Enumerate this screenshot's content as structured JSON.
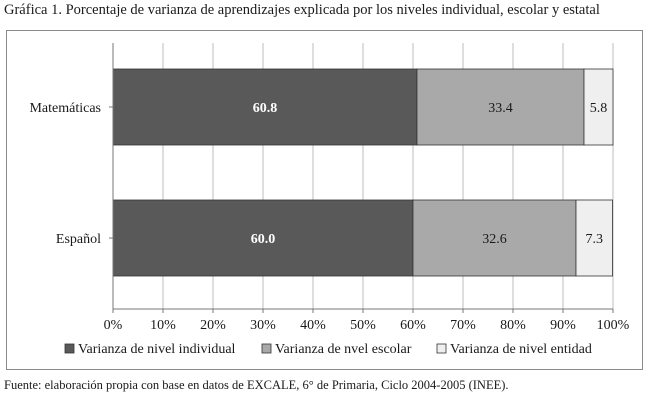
{
  "title": "Gráfica 1. Porcentaje de varianza de aprendizajes explicada por los niveles individual, escolar y estatal",
  "source": "Fuente: elaboración propia con base en datos de EXCALE, 6° de Primaria, Ciclo 2004-2005 (INEE).",
  "chart_data": {
    "type": "bar",
    "orientation": "horizontal",
    "stacked": true,
    "categories": [
      "Matemáticas",
      "Español"
    ],
    "series": [
      {
        "name": "Varianza de nivel individual",
        "values": [
          60.8,
          60.0
        ],
        "color": "#595959",
        "label_color": "#ffffff",
        "bold": true
      },
      {
        "name": "Varianza de nvel escolar",
        "values": [
          33.4,
          32.6
        ],
        "color": "#a9a9a9",
        "label_color": "#1a1a1a",
        "bold": false
      },
      {
        "name": "Varianza de nivel entidad",
        "values": [
          5.8,
          7.3
        ],
        "color": "#efefef",
        "label_color": "#1a1a1a",
        "bold": false
      }
    ],
    "xlim": [
      0,
      100
    ],
    "xticks": [
      "0%",
      "10%",
      "20%",
      "30%",
      "40%",
      "50%",
      "60%",
      "70%",
      "80%",
      "90%",
      "100%"
    ],
    "grid": true,
    "legend": "bottom"
  }
}
